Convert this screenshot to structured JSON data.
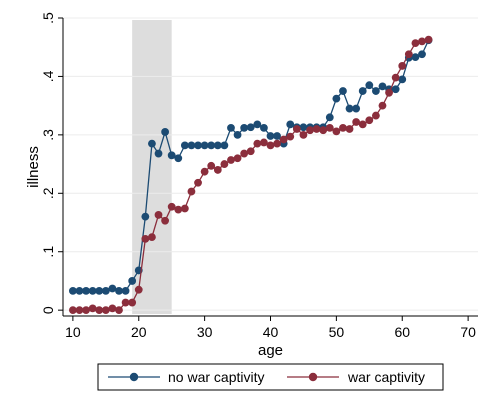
{
  "chart_data": {
    "type": "line",
    "xlabel": "age",
    "ylabel": "illness",
    "xlim": [
      8.5,
      71.5
    ],
    "ylim": [
      -0.01,
      0.5
    ],
    "x_ticks": [
      10,
      20,
      30,
      40,
      50,
      60,
      70
    ],
    "x_tick_labels": [
      "10",
      "20",
      "30",
      "40",
      "50",
      "60",
      "70"
    ],
    "y_ticks": [
      0,
      0.1,
      0.2,
      0.3,
      0.4,
      0.5
    ],
    "y_tick_labels": [
      "0",
      ".1",
      ".2",
      ".3",
      ".4",
      ".5"
    ],
    "grid": "horizontal",
    "legend_position": "bottom",
    "shaded_band": {
      "x_start": 19,
      "x_end": 25,
      "color": "#dddddd"
    },
    "x": [
      10,
      11,
      12,
      13,
      14,
      15,
      16,
      17,
      18,
      19,
      20,
      21,
      22,
      23,
      24,
      25,
      26,
      27,
      28,
      29,
      30,
      31,
      32,
      33,
      34,
      35,
      36,
      37,
      38,
      39,
      40,
      41,
      42,
      43,
      44,
      45,
      46,
      47,
      48,
      49,
      50,
      51,
      52,
      53,
      54,
      55,
      56,
      57,
      58,
      59,
      60,
      61,
      62,
      63,
      64
    ],
    "series": [
      {
        "name": "no war captivity",
        "color": "#1c4b73",
        "values": [
          0.033,
          0.033,
          0.033,
          0.033,
          0.033,
          0.033,
          0.037,
          0.033,
          0.033,
          0.05,
          0.068,
          0.16,
          0.285,
          0.268,
          0.305,
          0.265,
          0.26,
          0.282,
          0.282,
          0.282,
          0.282,
          0.282,
          0.282,
          0.282,
          0.312,
          0.3,
          0.312,
          0.313,
          0.318,
          0.312,
          0.298,
          0.298,
          0.285,
          0.318,
          0.313,
          0.313,
          0.313,
          0.313,
          0.313,
          0.33,
          0.362,
          0.375,
          0.345,
          0.345,
          0.375,
          0.385,
          0.375,
          0.383,
          0.378,
          0.378,
          0.395,
          0.432,
          0.433,
          0.438,
          0.462
        ]
      },
      {
        "name": "war captivity",
        "color": "#8b2e3c",
        "values": [
          0.0,
          0.0,
          0.0,
          0.003,
          0.0,
          0.0,
          0.003,
          0.0,
          0.013,
          0.013,
          0.035,
          0.122,
          0.125,
          0.163,
          0.153,
          0.177,
          0.172,
          0.174,
          0.203,
          0.218,
          0.237,
          0.247,
          0.24,
          0.25,
          0.257,
          0.26,
          0.268,
          0.272,
          0.285,
          0.287,
          0.282,
          0.285,
          0.292,
          0.297,
          0.31,
          0.3,
          0.308,
          0.31,
          0.308,
          0.312,
          0.306,
          0.312,
          0.31,
          0.322,
          0.318,
          0.325,
          0.333,
          0.35,
          0.372,
          0.398,
          0.418,
          0.438,
          0.457,
          0.46,
          0.463
        ]
      }
    ]
  }
}
